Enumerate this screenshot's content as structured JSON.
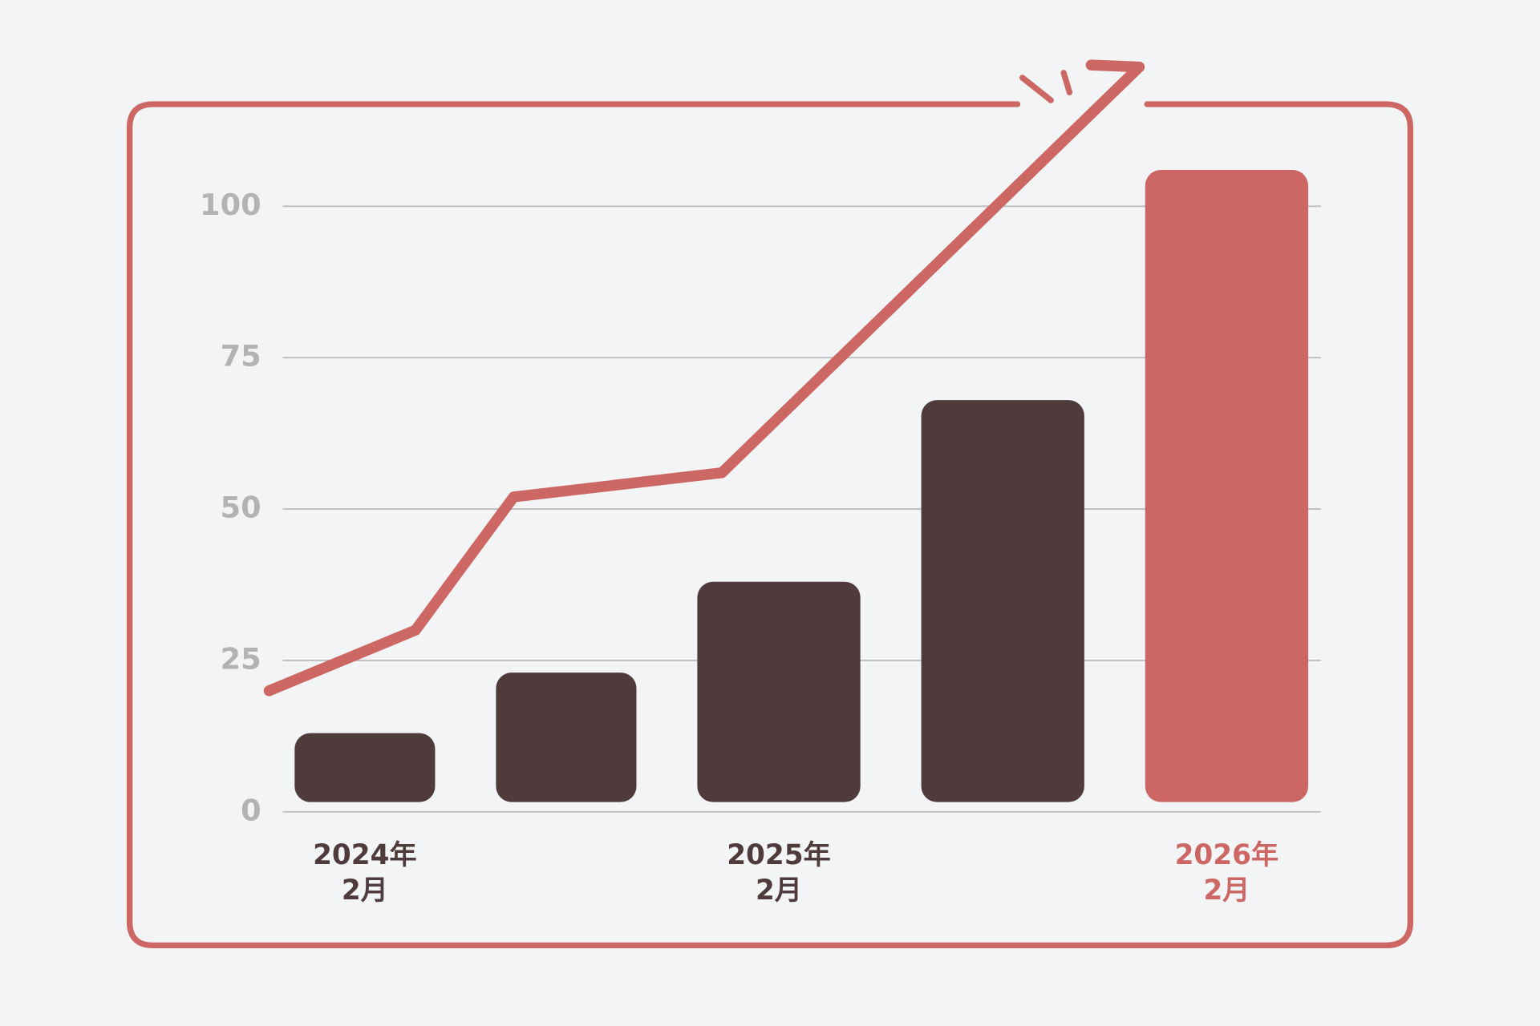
{
  "chart_data": {
    "type": "bar",
    "categories": [
      [
        "2024年",
        "2月"
      ],
      null,
      [
        "2025年",
        "2月"
      ],
      null,
      [
        "2026年",
        "2月"
      ]
    ],
    "values": [
      13,
      23,
      38,
      68,
      106
    ],
    "colors": [
      "#4f3b3c",
      "#4f3b3c",
      "#4f3b3c",
      "#4f3b3c",
      "#cd6764"
    ],
    "line": {
      "color": "#cd6764",
      "values": [
        20,
        30,
        52,
        56,
        123
      ]
    },
    "ylim": [
      0,
      125
    ],
    "yticks": [
      0,
      25,
      50,
      75,
      100
    ],
    "grid": true
  }
}
